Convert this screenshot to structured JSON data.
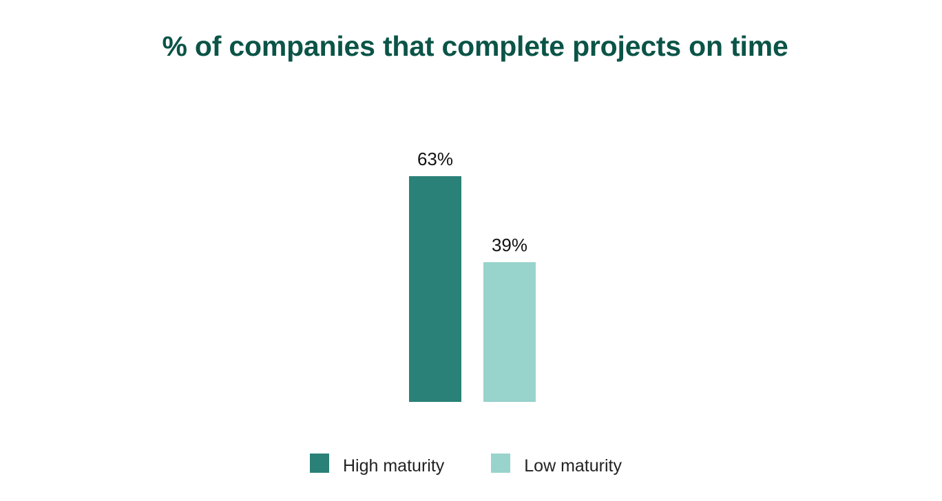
{
  "chart_data": {
    "type": "bar",
    "title": "% of companies that complete projects on time",
    "xlabel": "",
    "ylabel": "",
    "ylim": [
      0,
      100
    ],
    "grid": false,
    "categories": [
      "High maturity",
      "Low maturity"
    ],
    "values": [
      63,
      39
    ],
    "data_labels": [
      "63%",
      "39%"
    ],
    "legend": {
      "placement": "bottom-center",
      "entries": [
        "High maturity",
        "Low maturity"
      ]
    }
  },
  "colors": {
    "title": "#0b5447",
    "high_maturity": "#2a8177",
    "low_maturity": "#98d3cc",
    "data_label": "#111111"
  }
}
